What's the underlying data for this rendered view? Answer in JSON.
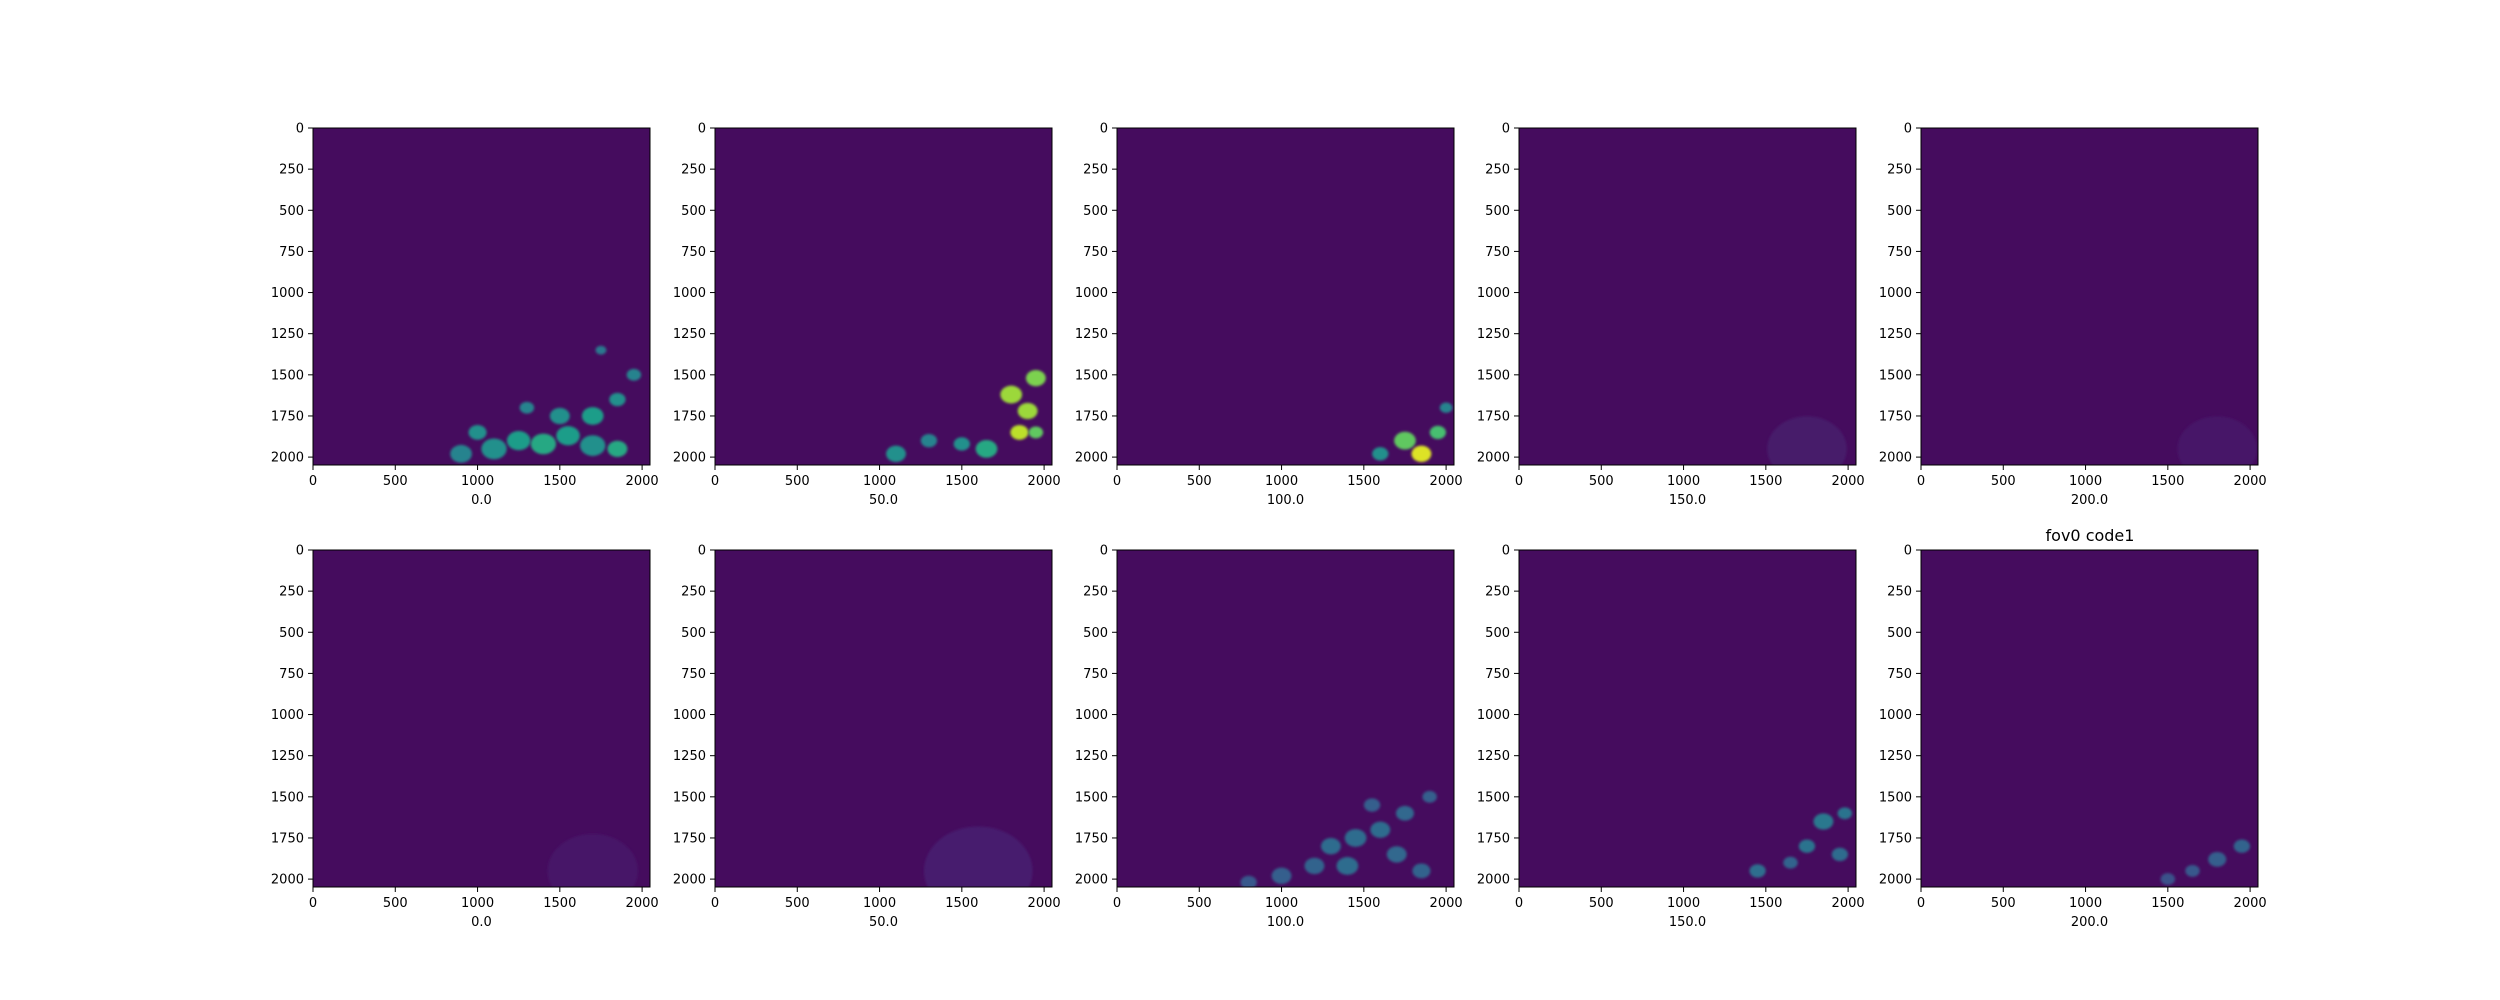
{
  "figure_title": "fov0 code1",
  "colormap": [
    "#440154",
    "#482878",
    "#3e4989",
    "#31688e",
    "#26828e",
    "#1f9e89",
    "#35b779",
    "#6ece58",
    "#b5de2b",
    "#fde725"
  ],
  "chart_data": [
    {
      "type": "heatmap",
      "row": 1,
      "col": 1,
      "xlabel": "0.0",
      "xlim": [
        0,
        2048
      ],
      "ylim": [
        2048,
        0
      ],
      "xticks": [
        0,
        500,
        1000,
        1500,
        2000
      ],
      "yticks": [
        0,
        250,
        500,
        750,
        1000,
        1250,
        1500,
        1750,
        2000
      ],
      "blobs": [
        [
          1100,
          1950,
          70,
          0.5
        ],
        [
          1250,
          1900,
          65,
          0.55
        ],
        [
          1400,
          1920,
          70,
          0.6
        ],
        [
          1550,
          1870,
          65,
          0.55
        ],
        [
          1700,
          1930,
          70,
          0.5
        ],
        [
          900,
          1980,
          60,
          0.45
        ],
        [
          1500,
          1750,
          55,
          0.5
        ],
        [
          1700,
          1750,
          60,
          0.55
        ],
        [
          1950,
          1500,
          40,
          0.45
        ],
        [
          1750,
          1350,
          30,
          0.4
        ],
        [
          1850,
          1650,
          45,
          0.5
        ],
        [
          1300,
          1700,
          40,
          0.45
        ],
        [
          1000,
          1850,
          50,
          0.5
        ],
        [
          1850,
          1950,
          55,
          0.6
        ]
      ]
    },
    {
      "type": "heatmap",
      "row": 1,
      "col": 2,
      "xlabel": "50.0",
      "xlim": [
        0,
        2048
      ],
      "ylim": [
        2048,
        0
      ],
      "xticks": [
        0,
        500,
        1000,
        1500,
        2000
      ],
      "yticks": [
        0,
        250,
        500,
        750,
        1000,
        1250,
        1500,
        1750,
        2000
      ],
      "blobs": [
        [
          1800,
          1620,
          60,
          0.85
        ],
        [
          1950,
          1520,
          55,
          0.8
        ],
        [
          1900,
          1720,
          55,
          0.85
        ],
        [
          1850,
          1850,
          50,
          0.9
        ],
        [
          1650,
          1950,
          60,
          0.6
        ],
        [
          1500,
          1920,
          45,
          0.5
        ],
        [
          1300,
          1900,
          45,
          0.45
        ],
        [
          1100,
          1980,
          55,
          0.5
        ],
        [
          1950,
          1850,
          40,
          0.75
        ]
      ]
    },
    {
      "type": "heatmap",
      "row": 1,
      "col": 3,
      "xlabel": "100.0",
      "xlim": [
        0,
        2048
      ],
      "ylim": [
        2048,
        0
      ],
      "xticks": [
        0,
        500,
        1000,
        1500,
        2000
      ],
      "yticks": [
        0,
        250,
        500,
        750,
        1000,
        1250,
        1500,
        1750,
        2000
      ],
      "blobs": [
        [
          1750,
          1900,
          60,
          0.75
        ],
        [
          1850,
          1980,
          55,
          0.95
        ],
        [
          1950,
          1850,
          45,
          0.7
        ],
        [
          1600,
          1980,
          45,
          0.5
        ],
        [
          2000,
          1700,
          35,
          0.45
        ]
      ]
    },
    {
      "type": "heatmap",
      "row": 1,
      "col": 4,
      "xlabel": "150.0",
      "xlim": [
        0,
        2048
      ],
      "ylim": [
        2048,
        0
      ],
      "xticks": [
        0,
        500,
        1000,
        1500,
        2000
      ],
      "yticks": [
        0,
        250,
        500,
        750,
        1000,
        1250,
        1500,
        1750,
        2000
      ],
      "blobs": [
        [
          1750,
          1950,
          220,
          0.07
        ]
      ]
    },
    {
      "type": "heatmap",
      "row": 1,
      "col": 5,
      "xlabel": "200.0",
      "xlim": [
        0,
        2048
      ],
      "ylim": [
        2048,
        0
      ],
      "xticks": [
        0,
        500,
        1000,
        1500,
        2000
      ],
      "yticks": [
        0,
        250,
        500,
        750,
        1000,
        1250,
        1500,
        1750,
        2000
      ],
      "blobs": [
        [
          1800,
          1950,
          220,
          0.06
        ]
      ]
    },
    {
      "type": "heatmap",
      "row": 2,
      "col": 1,
      "xlabel": "0.0",
      "xlim": [
        0,
        2048
      ],
      "ylim": [
        2048,
        0
      ],
      "xticks": [
        0,
        500,
        1000,
        1500,
        2000
      ],
      "yticks": [
        0,
        250,
        500,
        750,
        1000,
        1250,
        1500,
        1750,
        2000
      ],
      "blobs": [
        [
          1700,
          1950,
          250,
          0.06
        ]
      ]
    },
    {
      "type": "heatmap",
      "row": 2,
      "col": 2,
      "xlabel": "50.0",
      "xlim": [
        0,
        2048
      ],
      "ylim": [
        2048,
        0
      ],
      "xticks": [
        0,
        500,
        1000,
        1500,
        2000
      ],
      "yticks": [
        0,
        250,
        500,
        750,
        1000,
        1250,
        1500,
        1750,
        2000
      ],
      "blobs": [
        [
          1600,
          1950,
          300,
          0.08
        ]
      ]
    },
    {
      "type": "heatmap",
      "row": 2,
      "col": 3,
      "xlabel": "100.0",
      "xlim": [
        0,
        2048
      ],
      "ylim": [
        2048,
        0
      ],
      "xticks": [
        0,
        500,
        1000,
        1500,
        2000
      ],
      "yticks": [
        0,
        250,
        500,
        750,
        1000,
        1250,
        1500,
        1750,
        2000
      ],
      "blobs": [
        [
          1300,
          1800,
          55,
          0.35
        ],
        [
          1450,
          1750,
          60,
          0.35
        ],
        [
          1600,
          1700,
          55,
          0.35
        ],
        [
          1750,
          1600,
          50,
          0.33
        ],
        [
          1400,
          1920,
          60,
          0.35
        ],
        [
          1200,
          1920,
          55,
          0.32
        ],
        [
          1000,
          1980,
          55,
          0.3
        ],
        [
          1700,
          1850,
          55,
          0.33
        ],
        [
          1900,
          1500,
          40,
          0.3
        ],
        [
          1850,
          1950,
          50,
          0.32
        ],
        [
          1550,
          1550,
          45,
          0.3
        ],
        [
          800,
          2020,
          45,
          0.28
        ]
      ]
    },
    {
      "type": "heatmap",
      "row": 2,
      "col": 4,
      "xlabel": "150.0",
      "xlim": [
        0,
        2048
      ],
      "ylim": [
        2048,
        0
      ],
      "xticks": [
        0,
        500,
        1000,
        1500,
        2000
      ],
      "yticks": [
        0,
        250,
        500,
        750,
        1000,
        1250,
        1500,
        1750,
        2000
      ],
      "blobs": [
        [
          1850,
          1650,
          55,
          0.4
        ],
        [
          1980,
          1600,
          40,
          0.38
        ],
        [
          1750,
          1800,
          45,
          0.38
        ],
        [
          1450,
          1950,
          45,
          0.36
        ],
        [
          1950,
          1850,
          45,
          0.35
        ],
        [
          1650,
          1900,
          40,
          0.32
        ]
      ]
    },
    {
      "type": "heatmap",
      "row": 2,
      "col": 5,
      "xlabel": "200.0",
      "xlim": [
        0,
        2048
      ],
      "ylim": [
        2048,
        0
      ],
      "xticks": [
        0,
        500,
        1000,
        1500,
        2000
      ],
      "yticks": [
        0,
        250,
        500,
        750,
        1000,
        1250,
        1500,
        1750,
        2000
      ],
      "blobs": [
        [
          1800,
          1880,
          50,
          0.3
        ],
        [
          1950,
          1800,
          45,
          0.32
        ],
        [
          1650,
          1950,
          40,
          0.28
        ],
        [
          1500,
          2000,
          40,
          0.25
        ]
      ]
    }
  ]
}
